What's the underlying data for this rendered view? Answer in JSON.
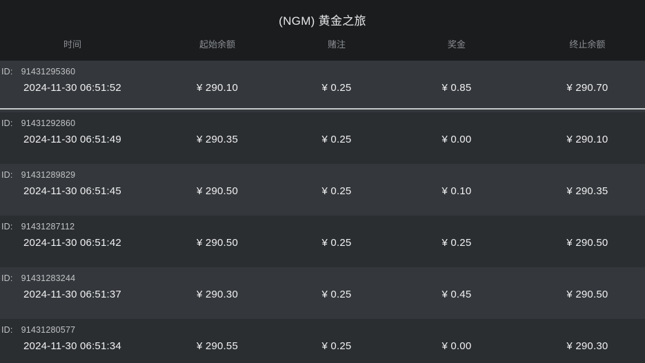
{
  "header": {
    "title": "(NGM) 黄金之旅"
  },
  "table": {
    "id_label": "ID:",
    "columns": [
      {
        "key": "time",
        "label": "时间"
      },
      {
        "key": "start_balance",
        "label": "起始余额"
      },
      {
        "key": "bet",
        "label": "赌注"
      },
      {
        "key": "prize",
        "label": "奖金"
      },
      {
        "key": "end_balance",
        "label": "终止余额"
      }
    ],
    "rows": [
      {
        "id": "91431295360",
        "time": "2024-11-30 06:51:52",
        "start_balance": "¥ 290.10",
        "bet": "¥ 0.25",
        "prize": "¥ 0.85",
        "end_balance": "¥ 290.70",
        "highlighted": true
      },
      {
        "id": "91431292860",
        "time": "2024-11-30 06:51:49",
        "start_balance": "¥ 290.35",
        "bet": "¥ 0.25",
        "prize": "¥ 0.00",
        "end_balance": "¥ 290.10",
        "highlighted": false
      },
      {
        "id": "91431289829",
        "time": "2024-11-30 06:51:45",
        "start_balance": "¥ 290.50",
        "bet": "¥ 0.25",
        "prize": "¥ 0.10",
        "end_balance": "¥ 290.35",
        "highlighted": false
      },
      {
        "id": "91431287112",
        "time": "2024-11-30 06:51:42",
        "start_balance": "¥ 290.50",
        "bet": "¥ 0.25",
        "prize": "¥ 0.25",
        "end_balance": "¥ 290.50",
        "highlighted": false
      },
      {
        "id": "91431283244",
        "time": "2024-11-30 06:51:37",
        "start_balance": "¥ 290.30",
        "bet": "¥ 0.25",
        "prize": "¥ 0.45",
        "end_balance": "¥ 290.50",
        "highlighted": false
      },
      {
        "id": "91431280577",
        "time": "2024-11-30 06:51:34",
        "start_balance": "¥ 290.55",
        "bet": "¥ 0.25",
        "prize": "¥ 0.00",
        "end_balance": "¥ 290.30",
        "highlighted": false
      }
    ]
  },
  "colors": {
    "header_bg": "#1a1c1e",
    "row_odd_bg": "#34373b",
    "row_even_bg": "#2b2e31",
    "highlight_line": "#c6c8c9",
    "column_header_text": "#8b8e92",
    "id_text": "#c2c4c6",
    "value_text": "#f0f1f2"
  }
}
